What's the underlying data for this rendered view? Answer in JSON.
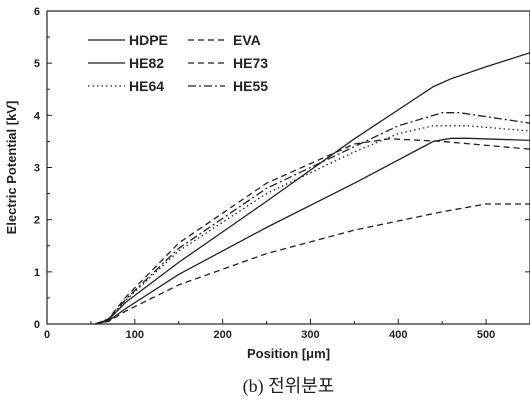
{
  "chart_data": {
    "type": "line",
    "xlabel": "Position [μm]",
    "ylabel": "Electric Potential [kV]",
    "xlim": [
      0,
      550
    ],
    "ylim": [
      0,
      6
    ],
    "xticks": [
      "0",
      "100",
      "200",
      "300",
      "400",
      "500"
    ],
    "yticks": [
      "0",
      "1",
      "2",
      "3",
      "4",
      "5",
      "6"
    ],
    "caption": "(b) 전위분포",
    "grid": false,
    "legend_position": "top-left",
    "series": [
      {
        "name": "HDPE",
        "style": "solid",
        "x": [
          55,
          70,
          90,
          150,
          250,
          350,
          440,
          460,
          500,
          550
        ],
        "y": [
          0,
          0.08,
          0.42,
          1.18,
          2.35,
          3.55,
          4.55,
          4.7,
          4.93,
          5.2
        ]
      },
      {
        "name": "EVA",
        "style": "dashed",
        "x": [
          55,
          70,
          90,
          150,
          250,
          350,
          450,
          500,
          550
        ],
        "y": [
          0,
          0.05,
          0.25,
          0.75,
          1.35,
          1.8,
          2.15,
          2.3,
          2.3
        ]
      },
      {
        "name": "HE82",
        "style": "solid",
        "x": [
          55,
          70,
          90,
          150,
          250,
          350,
          440,
          460,
          480,
          550
        ],
        "y": [
          0,
          0.06,
          0.3,
          0.95,
          1.85,
          2.7,
          3.5,
          3.56,
          3.56,
          3.52
        ]
      },
      {
        "name": "HE73",
        "style": "dashed",
        "x": [
          55,
          70,
          90,
          150,
          250,
          350,
          390,
          450,
          550
        ],
        "y": [
          0,
          0.1,
          0.52,
          1.55,
          2.7,
          3.45,
          3.55,
          3.5,
          3.35
        ]
      },
      {
        "name": "HE64",
        "style": "dotted",
        "x": [
          55,
          70,
          90,
          150,
          250,
          350,
          400,
          440,
          480,
          550
        ],
        "y": [
          0,
          0.09,
          0.46,
          1.4,
          2.5,
          3.3,
          3.65,
          3.8,
          3.8,
          3.7
        ]
      },
      {
        "name": "HE55",
        "style": "dashdot",
        "x": [
          55,
          70,
          90,
          150,
          250,
          350,
          400,
          450,
          470,
          550
        ],
        "y": [
          0,
          0.09,
          0.48,
          1.45,
          2.6,
          3.4,
          3.8,
          4.05,
          4.05,
          3.85
        ]
      }
    ]
  }
}
